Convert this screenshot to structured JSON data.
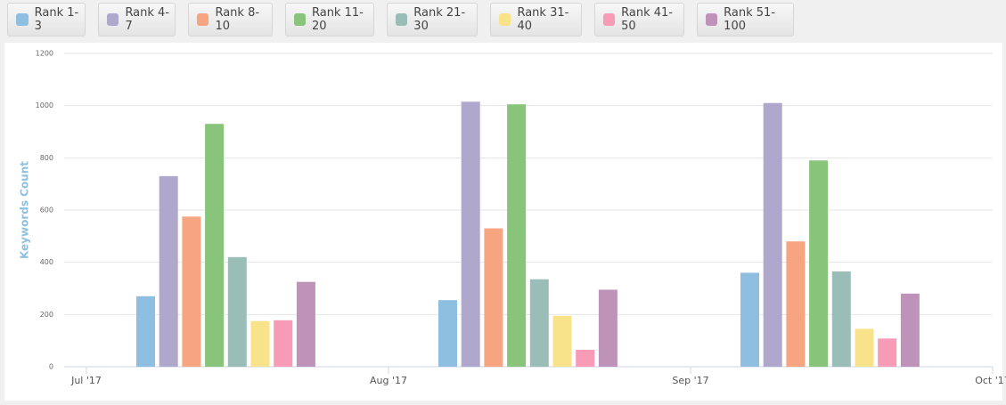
{
  "chart_data": {
    "type": "bar",
    "y_label": "Keywords Count",
    "categories": [
      null,
      null,
      null
    ],
    "xtick_labels": [
      "Jul '17",
      "Aug '17",
      "Sep '17",
      "Oct '17"
    ],
    "ylim": [
      0,
      1200
    ],
    "yticks": [
      0,
      200,
      400,
      600,
      800,
      1000,
      1200
    ],
    "grid": true,
    "series": [
      {
        "name": "Rank 1-3",
        "color": "#8fbfe0",
        "values": [
          270,
          255,
          360
        ]
      },
      {
        "name": "Rank 4-7",
        "color": "#b0a8cc",
        "values": [
          730,
          1015,
          1010
        ]
      },
      {
        "name": "Rank 8-10",
        "color": "#f7a580",
        "values": [
          575,
          530,
          480
        ]
      },
      {
        "name": "Rank 11-20",
        "color": "#88c47a",
        "values": [
          930,
          1005,
          790
        ]
      },
      {
        "name": "Rank 21-30",
        "color": "#9bbdb8",
        "values": [
          420,
          335,
          365
        ]
      },
      {
        "name": "Rank 31-40",
        "color": "#f8e38a",
        "values": [
          175,
          195,
          145
        ]
      },
      {
        "name": "Rank 41-50",
        "color": "#f79bb6",
        "values": [
          178,
          65,
          108
        ]
      },
      {
        "name": "Rank 51-100",
        "color": "#bf93b9",
        "values": [
          325,
          295,
          280
        ]
      }
    ]
  }
}
